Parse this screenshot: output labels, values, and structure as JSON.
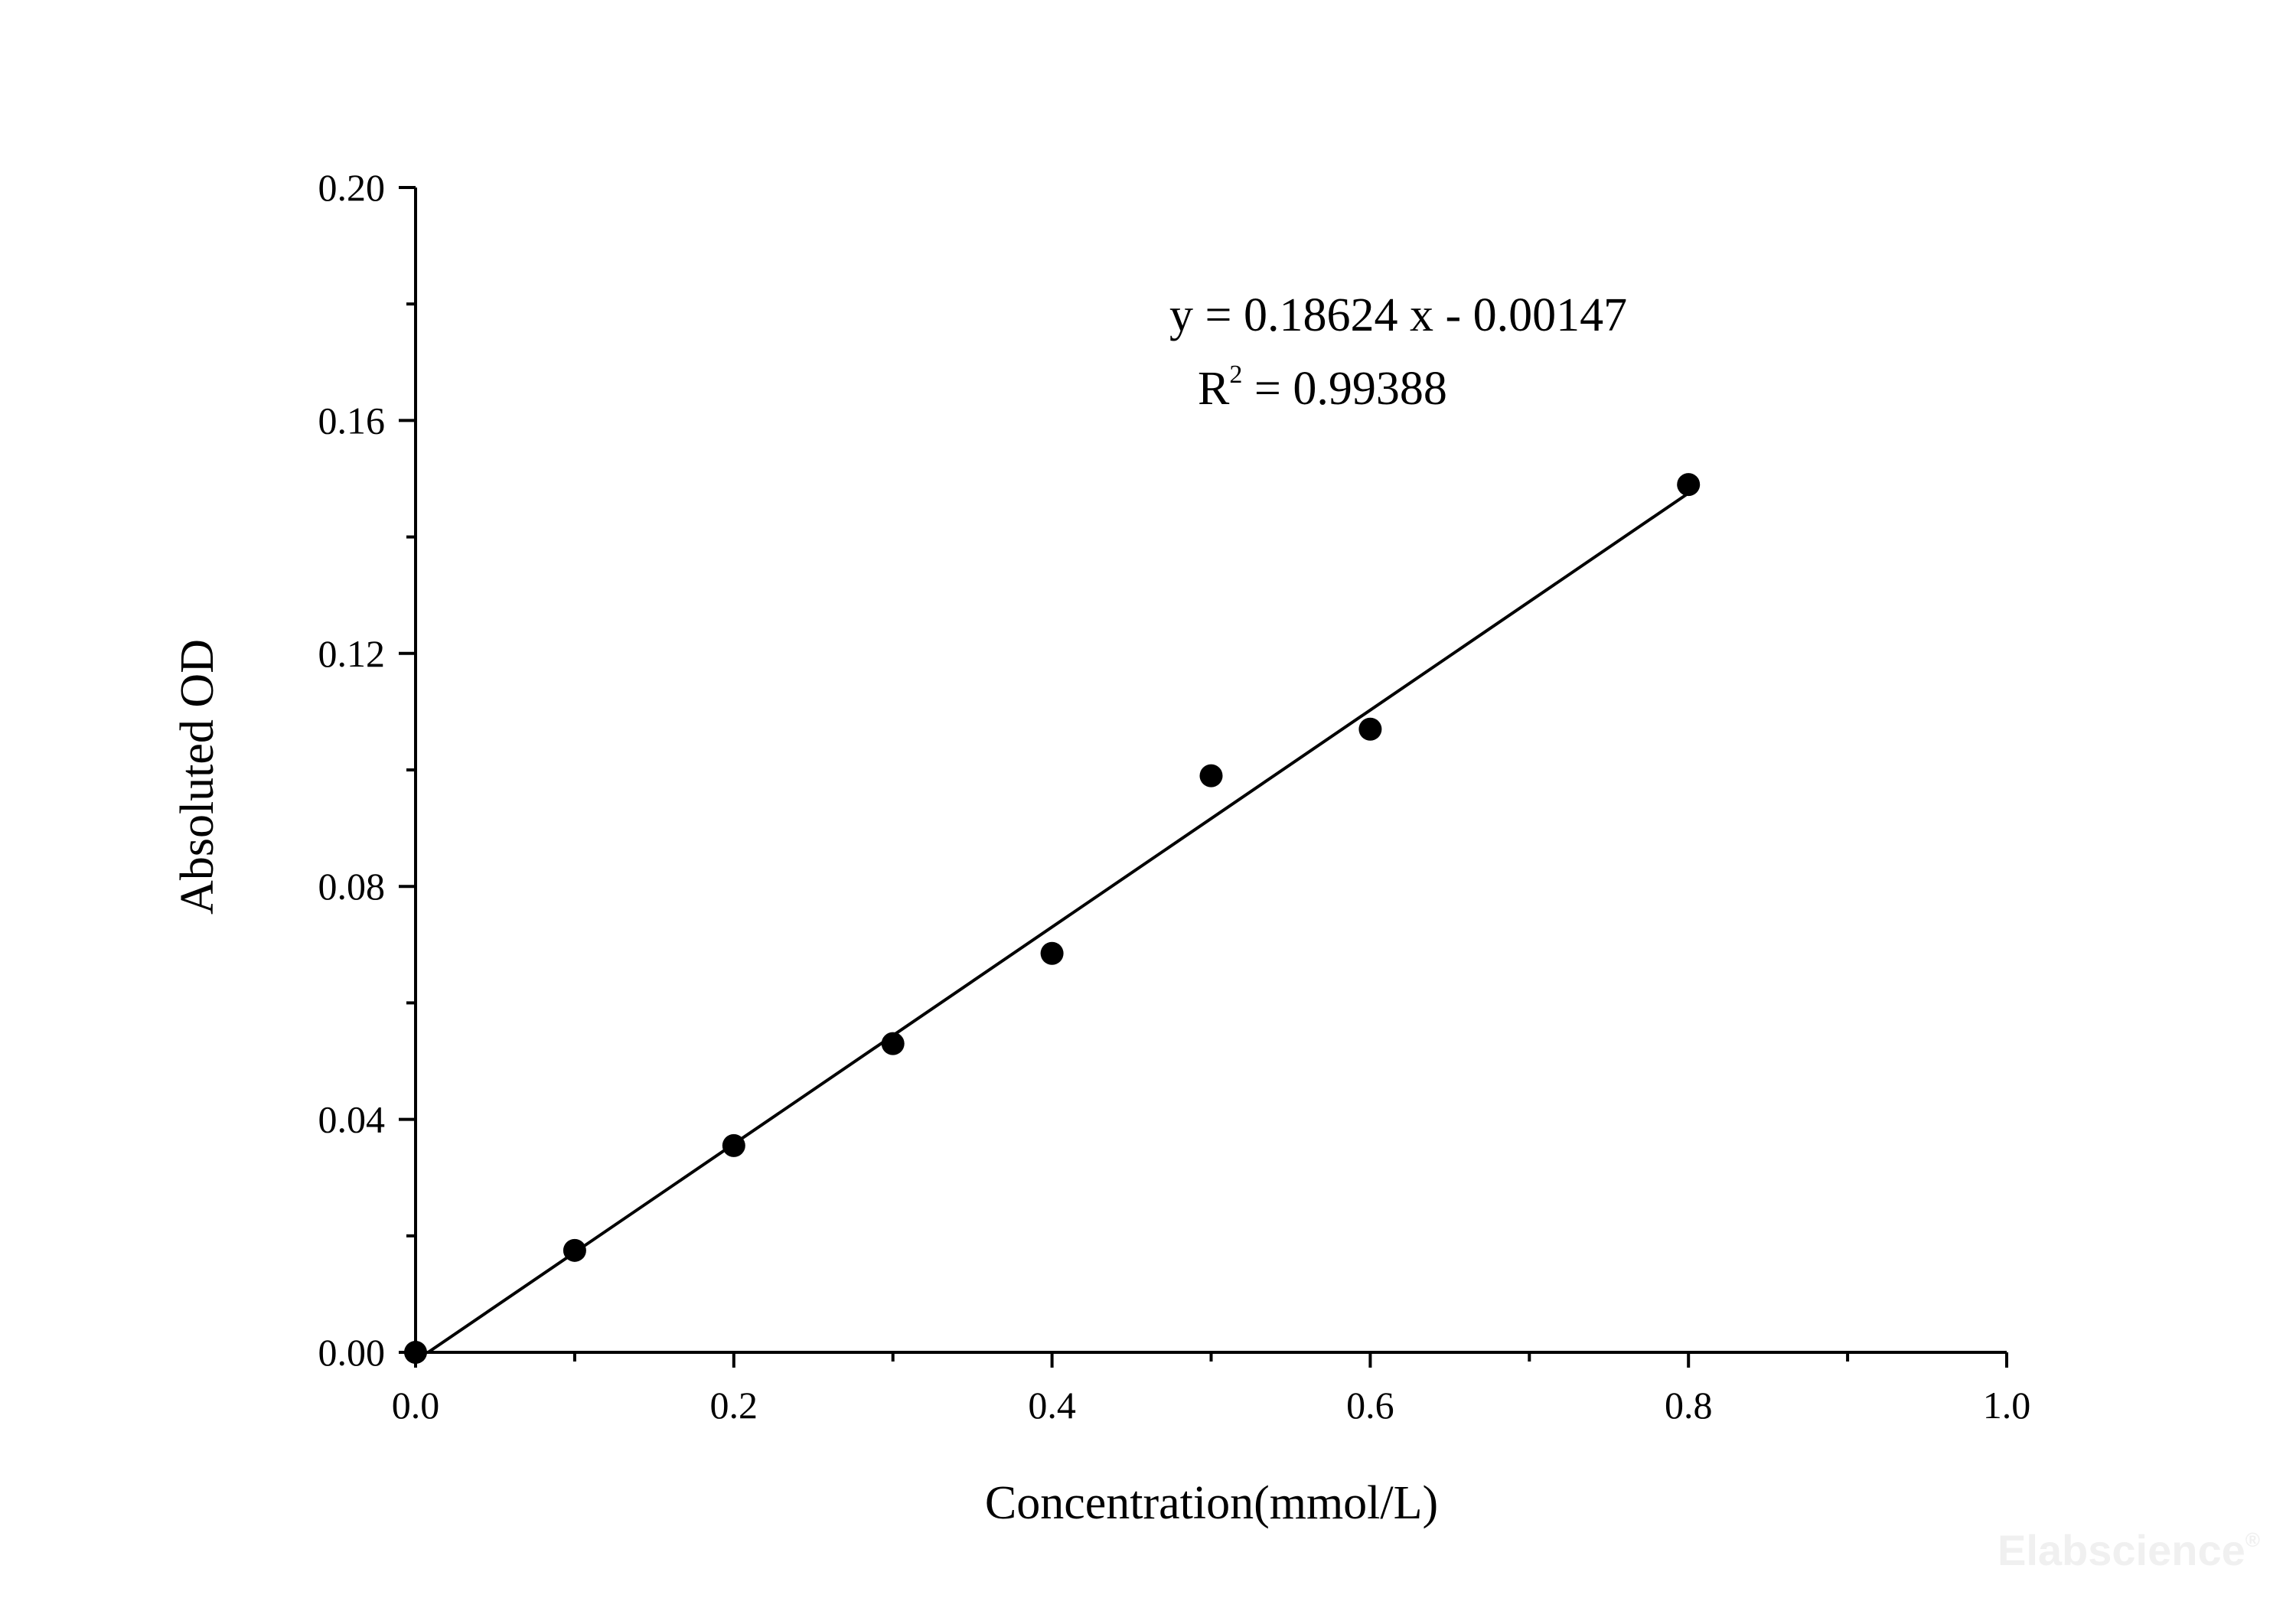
{
  "chart_data": {
    "type": "scatter",
    "xlabel": "Concentration(mmol/L)",
    "ylabel": "Absoluted OD",
    "xlim": [
      0,
      1.0
    ],
    "ylim": [
      0,
      0.2
    ],
    "x_ticks": [
      "0.0",
      "0.2",
      "0.4",
      "0.6",
      "0.8",
      "1.0"
    ],
    "y_ticks": [
      "0.00",
      "0.04",
      "0.08",
      "0.12",
      "0.16",
      "0.20"
    ],
    "x_tick_values": [
      0,
      0.2,
      0.4,
      0.6,
      0.8,
      1.0
    ],
    "y_tick_values": [
      0,
      0.04,
      0.08,
      0.12,
      0.16,
      0.2
    ],
    "x_minor_tick_values": [
      0.1,
      0.3,
      0.5,
      0.7,
      0.9
    ],
    "y_minor_tick_values": [
      0.02,
      0.06,
      0.1,
      0.14,
      0.18
    ],
    "points": [
      {
        "x": 0.0,
        "y": 0.0
      },
      {
        "x": 0.1,
        "y": 0.0175
      },
      {
        "x": 0.2,
        "y": 0.0355
      },
      {
        "x": 0.3,
        "y": 0.053
      },
      {
        "x": 0.4,
        "y": 0.0685
      },
      {
        "x": 0.5,
        "y": 0.099
      },
      {
        "x": 0.6,
        "y": 0.107
      },
      {
        "x": 0.8,
        "y": 0.149
      }
    ],
    "fit": {
      "slope": 0.18624,
      "intercept": -0.00147,
      "x_range": [
        0.0,
        0.8
      ]
    },
    "equation": "y = 0.18624 x - 0.00147",
    "r2_label": "R",
    "r2_superscript": "2",
    "r2_value": " = 0.99388",
    "grid": false
  },
  "watermark": {
    "text": "Elabscience",
    "mark": "®"
  }
}
